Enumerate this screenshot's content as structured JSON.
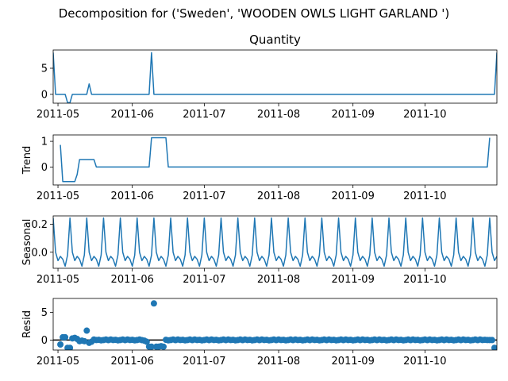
{
  "figure": {
    "suptitle": "Decomposition for ('Sweden', 'WOODEN OWLS LIGHT GARLAND ')",
    "line_color": "#1f77b4"
  },
  "x_axis": {
    "start": "2011-04-29",
    "end": "2011-10-31",
    "tick_labels": [
      "2011-05",
      "2011-06",
      "2011-07",
      "2011-08",
      "2011-09",
      "2011-10"
    ],
    "tick_dates": [
      "2011-05-01",
      "2011-06-01",
      "2011-07-01",
      "2011-08-01",
      "2011-09-01",
      "2011-10-01"
    ]
  },
  "chart_data": [
    {
      "type": "line",
      "title": "Quantity",
      "ylabel": "",
      "ylim": [
        -1.7,
        8.5
      ],
      "yticks": [
        0,
        5
      ],
      "series": [
        {
          "x": [
            "2011-04-29",
            "2011-04-30",
            "2011-05-04",
            "2011-05-05",
            "2011-05-06",
            "2011-05-07",
            "2011-05-13",
            "2011-05-14",
            "2011-05-15",
            "2011-06-08",
            "2011-06-09",
            "2011-06-10",
            "2011-10-30",
            "2011-10-31"
          ],
          "values": [
            8,
            0,
            0,
            -1.6,
            -1.6,
            0,
            0,
            2,
            0,
            0,
            8,
            0,
            0,
            8
          ]
        }
      ]
    },
    {
      "type": "line",
      "title": "",
      "ylabel": "Trend",
      "ylim": [
        -0.7,
        1.25
      ],
      "yticks": [
        0,
        1
      ],
      "series": [
        {
          "x": [
            "2011-05-02",
            "2011-05-03",
            "2011-05-08",
            "2011-05-09",
            "2011-05-10",
            "2011-05-16",
            "2011-05-17",
            "2011-06-08",
            "2011-06-09",
            "2011-06-15",
            "2011-06-16",
            "2011-10-27",
            "2011-10-28"
          ],
          "values": [
            0.86,
            -0.57,
            -0.57,
            -0.29,
            0.29,
            0.29,
            0,
            0,
            1.14,
            1.14,
            0,
            0,
            1.14
          ]
        }
      ]
    },
    {
      "type": "line",
      "title": "",
      "ylabel": "Seasonal",
      "ylim": [
        -0.115,
        0.26
      ],
      "yticks": [
        0.0,
        0.2
      ],
      "series": [
        {
          "period_days": 7,
          "start": "2011-04-29",
          "end": "2011-10-31",
          "cycle_values": [
            0.245,
            0.0,
            -0.06,
            -0.03,
            -0.05,
            -0.1,
            -0.02
          ]
        }
      ]
    },
    {
      "type": "scatter",
      "title": "",
      "ylabel": "Resid",
      "ylim": [
        -1.8,
        7.5
      ],
      "yticks": [
        0,
        5
      ],
      "zero_line": true,
      "points": [
        [
          "2011-05-02",
          -0.8
        ],
        [
          "2011-05-03",
          0.5
        ],
        [
          "2011-05-04",
          0.5
        ],
        [
          "2011-05-05",
          -1.4
        ],
        [
          "2011-05-06",
          -1.4
        ],
        [
          "2011-05-07",
          0.3
        ],
        [
          "2011-05-08",
          0.4
        ],
        [
          "2011-05-09",
          0.2
        ],
        [
          "2011-05-10",
          -0.2
        ],
        [
          "2011-05-11",
          -0.1
        ],
        [
          "2011-05-12",
          -0.2
        ],
        [
          "2011-05-13",
          1.7
        ],
        [
          "2011-05-14",
          -0.5
        ],
        [
          "2011-05-15",
          -0.3
        ],
        [
          "2011-06-06",
          -0.1
        ],
        [
          "2011-06-07",
          -0.3
        ],
        [
          "2011-06-08",
          -1.2
        ],
        [
          "2011-06-09",
          -1.2
        ],
        [
          "2011-06-10",
          6.6
        ],
        [
          "2011-06-11",
          -1.2
        ],
        [
          "2011-06-12",
          -1.2
        ],
        [
          "2011-06-13",
          -1.1
        ],
        [
          "2011-06-14",
          -1.2
        ],
        [
          "2011-10-27",
          0.0
        ],
        [
          "2011-10-28",
          0.0
        ],
        [
          "2011-10-29",
          0.0
        ],
        [
          "2011-10-30",
          -1.4
        ]
      ],
      "baseline_pattern": {
        "period_days": 7,
        "start": "2011-05-16",
        "end": "2011-10-26",
        "cycle_values": [
          0.1,
          0.0,
          0.05,
          -0.05,
          0.0,
          0.1,
          -0.02
        ],
        "skip_ranges": [
          [
            "2011-06-06",
            "2011-06-14"
          ]
        ]
      }
    }
  ]
}
